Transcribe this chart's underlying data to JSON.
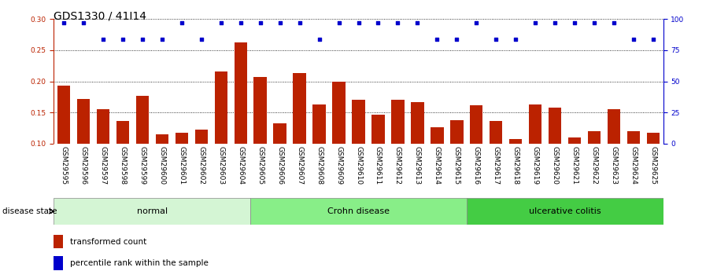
{
  "title": "GDS1330 / 41I14",
  "samples": [
    "GSM29595",
    "GSM29596",
    "GSM29597",
    "GSM29598",
    "GSM29599",
    "GSM29600",
    "GSM29601",
    "GSM29602",
    "GSM29603",
    "GSM29604",
    "GSM29605",
    "GSM29606",
    "GSM29607",
    "GSM29608",
    "GSM29609",
    "GSM29610",
    "GSM29611",
    "GSM29612",
    "GSM29613",
    "GSM29614",
    "GSM29615",
    "GSM29616",
    "GSM29617",
    "GSM29618",
    "GSM29619",
    "GSM29620",
    "GSM29621",
    "GSM29622",
    "GSM29623",
    "GSM29624",
    "GSM29625"
  ],
  "bar_values": [
    0.193,
    0.172,
    0.155,
    0.136,
    0.177,
    0.115,
    0.117,
    0.123,
    0.216,
    0.262,
    0.207,
    0.133,
    0.213,
    0.163,
    0.2,
    0.17,
    0.147,
    0.17,
    0.167,
    0.126,
    0.138,
    0.161,
    0.136,
    0.107,
    0.163,
    0.158,
    0.11,
    0.12,
    0.155,
    0.12,
    0.117
  ],
  "percentile_values": [
    97,
    97,
    84,
    84,
    84,
    84,
    97,
    84,
    97,
    97,
    97,
    97,
    97,
    84,
    97,
    97,
    97,
    97,
    97,
    84,
    84,
    97,
    84,
    84,
    97,
    97,
    97,
    97,
    97,
    84,
    84
  ],
  "groups": [
    {
      "label": "normal",
      "start": 0,
      "end": 10,
      "color": "#d4f5d4"
    },
    {
      "label": "Crohn disease",
      "start": 10,
      "end": 21,
      "color": "#88ee88"
    },
    {
      "label": "ulcerative colitis",
      "start": 21,
      "end": 31,
      "color": "#44cc44"
    }
  ],
  "bar_color": "#bb2200",
  "dot_color": "#0000cc",
  "bar_ylim": [
    0.1,
    0.3
  ],
  "pct_ylim": [
    0,
    100
  ],
  "yticks_left": [
    0.1,
    0.15,
    0.2,
    0.25,
    0.3
  ],
  "yticks_right": [
    0,
    25,
    50,
    75,
    100
  ],
  "title_fontsize": 10,
  "xtick_fontsize": 6.5,
  "label_fontsize": 7.5,
  "group_fontsize": 8,
  "background_color": "#ffffff",
  "grid_color": "#000000",
  "xtick_bg": "#c8c8c8"
}
